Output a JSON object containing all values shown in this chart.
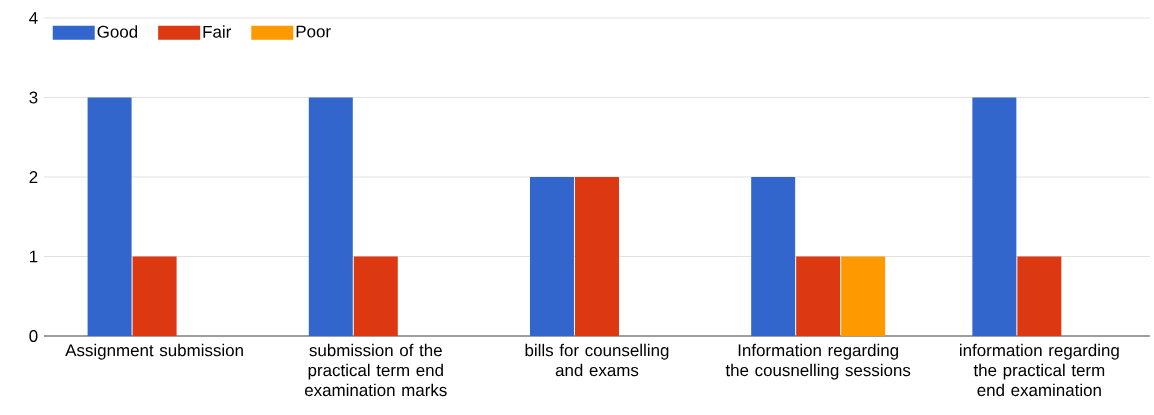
{
  "chart_data": {
    "type": "bar",
    "categories": [
      "Assignment submission",
      "submission of the practical term end examination marks",
      "bills for counselling and exams",
      "Information regarding the cousnelling sessions",
      "information regarding the practical term end examination"
    ],
    "series": [
      {
        "name": "Good",
        "color": "#3366cc",
        "values": [
          3,
          3,
          2,
          2,
          3
        ]
      },
      {
        "name": "Fair",
        "color": "#dc3912",
        "values": [
          1,
          1,
          2,
          1,
          1
        ]
      },
      {
        "name": "Poor",
        "color": "#ff9900",
        "values": [
          0,
          0,
          0,
          1,
          0
        ]
      }
    ],
    "ylim": [
      0,
      4
    ],
    "yticks": [
      0,
      1,
      2,
      3,
      4
    ],
    "grid": "y",
    "legend": "top left"
  }
}
